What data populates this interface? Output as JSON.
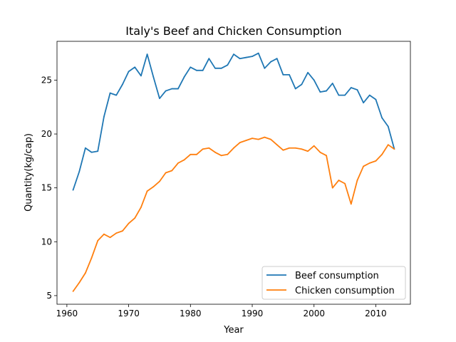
{
  "chart_data": {
    "type": "line",
    "title": "Italy's Beef and Chicken Consumption",
    "xlabel": "Year",
    "ylabel": "Quantity(kg/cap)",
    "xlim": [
      1958.4,
      2015.6
    ],
    "ylim": [
      4.2,
      28.6
    ],
    "xticks": [
      1960,
      1970,
      1980,
      1990,
      2000,
      2010
    ],
    "yticks": [
      5,
      10,
      15,
      20,
      25
    ],
    "grid": false,
    "legend_position": "lower-right",
    "x": [
      1961,
      1962,
      1963,
      1964,
      1965,
      1966,
      1967,
      1968,
      1969,
      1970,
      1971,
      1972,
      1973,
      1974,
      1975,
      1976,
      1977,
      1978,
      1979,
      1980,
      1981,
      1982,
      1983,
      1984,
      1985,
      1986,
      1987,
      1988,
      1989,
      1990,
      1991,
      1992,
      1993,
      1994,
      1995,
      1996,
      1997,
      1998,
      1999,
      2000,
      2001,
      2002,
      2003,
      2004,
      2005,
      2006,
      2007,
      2008,
      2009,
      2010,
      2011,
      2012,
      2013
    ],
    "series": [
      {
        "name": "Beef consumption",
        "color": "#1f77b4",
        "values": [
          14.8,
          16.5,
          18.7,
          18.3,
          18.4,
          21.6,
          23.8,
          23.6,
          24.6,
          25.8,
          26.2,
          25.4,
          27.4,
          25.3,
          23.3,
          24.0,
          24.2,
          24.2,
          25.3,
          26.2,
          25.9,
          25.9,
          27.0,
          26.1,
          26.1,
          26.4,
          27.4,
          27.0,
          27.1,
          27.2,
          27.5,
          26.1,
          26.7,
          27.0,
          25.5,
          25.5,
          24.2,
          24.6,
          25.7,
          25.0,
          23.9,
          24.0,
          24.7,
          23.6,
          23.6,
          24.3,
          24.1,
          22.9,
          23.6,
          23.2,
          21.5,
          20.7,
          18.6
        ]
      },
      {
        "name": "Chicken consumption",
        "color": "#ff7f0e",
        "values": [
          5.4,
          6.2,
          7.1,
          8.5,
          10.1,
          10.7,
          10.4,
          10.8,
          11.0,
          11.7,
          12.2,
          13.2,
          14.7,
          15.1,
          15.6,
          16.4,
          16.6,
          17.3,
          17.6,
          18.1,
          18.1,
          18.6,
          18.7,
          18.3,
          18.0,
          18.1,
          18.7,
          19.2,
          19.4,
          19.6,
          19.5,
          19.7,
          19.5,
          19.0,
          18.5,
          18.7,
          18.7,
          18.6,
          18.4,
          18.9,
          18.3,
          18.0,
          15.0,
          15.7,
          15.4,
          13.5,
          15.7,
          17.0,
          17.3,
          17.5,
          18.1,
          19.0,
          18.6
        ]
      }
    ]
  }
}
